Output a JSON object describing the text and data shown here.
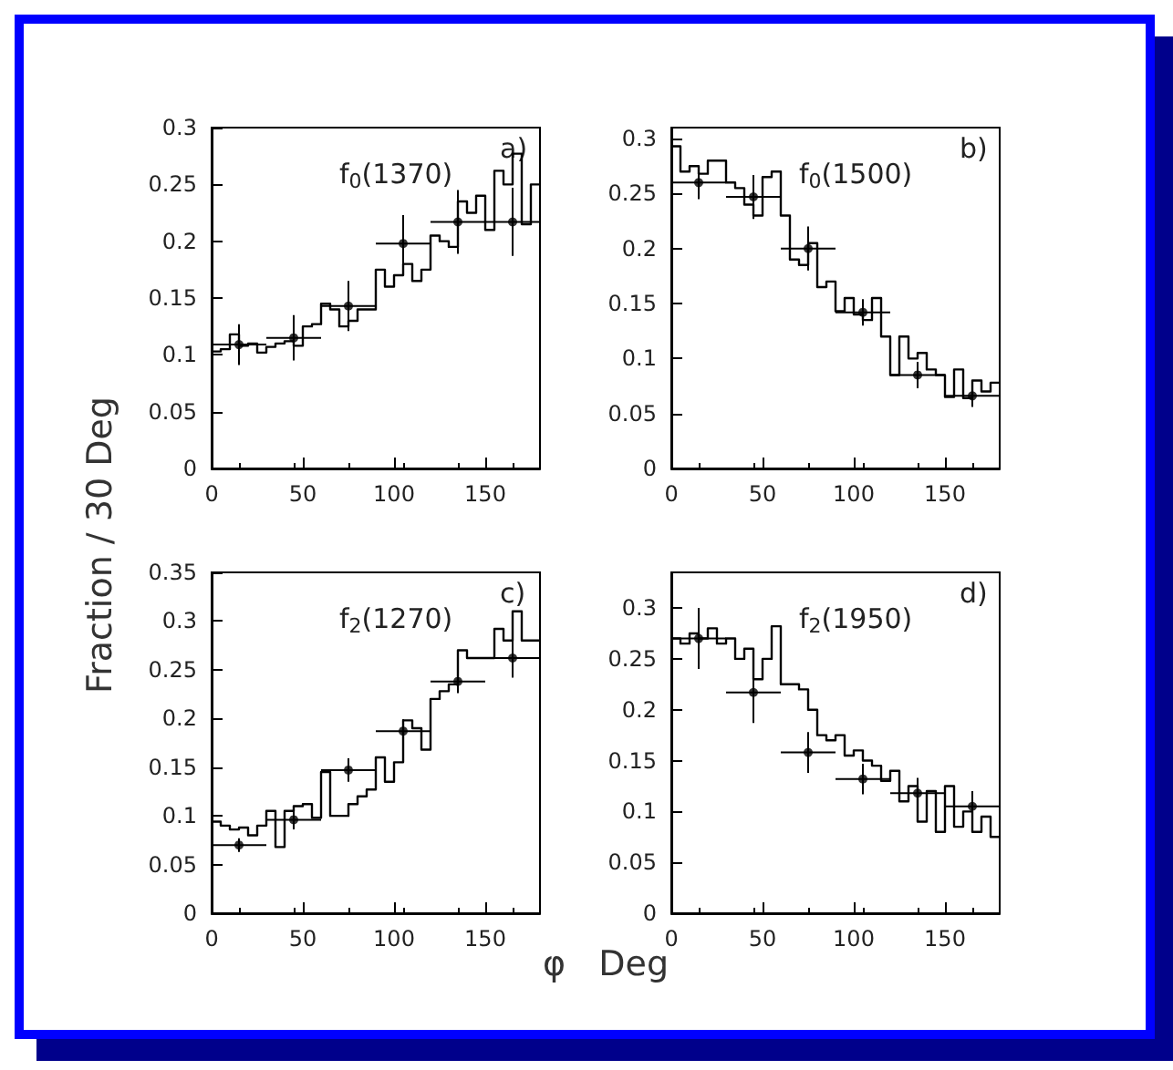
{
  "chart_data": [
    {
      "type": "histogram",
      "ylabel": "Fraction / 30 Deg",
      "annotations": [
        "f$_{0}$(1370)",
        "a)"
      ],
      "xlim": [
        0,
        180
      ],
      "xticks": [
        0,
        50,
        100,
        150
      ],
      "ylim": [
        0,
        0.3
      ],
      "yticks": [
        0,
        0.05,
        0.1,
        0.15,
        0.2,
        0.25,
        0.3
      ],
      "series": [
        {
          "type": "histogram",
          "color": "#000000",
          "bins": [
            0,
            5,
            10,
            15,
            20,
            25,
            30,
            35,
            40,
            45,
            50,
            55,
            60,
            65,
            70,
            75,
            80,
            85,
            90,
            95,
            100,
            105,
            110,
            115,
            120,
            125,
            130,
            135,
            140,
            145,
            150,
            155,
            160,
            165,
            170,
            175,
            180
          ],
          "values": [
            0.103,
            0.105,
            0.118,
            0.108,
            0.11,
            0.102,
            0.107,
            0.11,
            0.112,
            0.108,
            0.125,
            0.127,
            0.145,
            0.14,
            0.125,
            0.13,
            0.14,
            0.14,
            0.175,
            0.16,
            0.17,
            0.18,
            0.165,
            0.175,
            0.205,
            0.2,
            0.195,
            0.235,
            0.225,
            0.24,
            0.21,
            0.262,
            0.25,
            0.277,
            0.215,
            0.25
          ]
        },
        {
          "type": "scatter",
          "color": "#000000",
          "marker": "circle",
          "x": [
            15,
            45,
            75,
            105,
            135,
            165
          ],
          "values": [
            0.109,
            0.115,
            0.143,
            0.198,
            0.217,
            0.217
          ],
          "errors": [
            0.018,
            0.02,
            0.022,
            0.025,
            0.028,
            0.03
          ],
          "xerrors": [
            15,
            15,
            15,
            15,
            15,
            15
          ]
        }
      ]
    },
    {
      "type": "histogram",
      "annotations": [
        "f$_{0}$(1500)",
        "b)"
      ],
      "xlim": [
        0,
        180
      ],
      "xticks": [
        0,
        50,
        100,
        150
      ],
      "ylim": [
        0,
        0.31
      ],
      "yticks": [
        0,
        0.05,
        0.1,
        0.15,
        0.2,
        0.25,
        0.3
      ],
      "series": [
        {
          "type": "histogram",
          "color": "#000000",
          "bins": [
            0,
            5,
            10,
            15,
            20,
            25,
            30,
            35,
            40,
            45,
            50,
            55,
            60,
            65,
            70,
            75,
            80,
            85,
            90,
            95,
            100,
            105,
            110,
            115,
            120,
            125,
            130,
            135,
            140,
            145,
            150,
            155,
            160,
            165,
            170,
            175,
            180
          ],
          "values": [
            0.293,
            0.27,
            0.275,
            0.268,
            0.28,
            0.28,
            0.26,
            0.255,
            0.24,
            0.23,
            0.265,
            0.27,
            0.23,
            0.19,
            0.185,
            0.205,
            0.165,
            0.17,
            0.143,
            0.155,
            0.14,
            0.135,
            0.155,
            0.12,
            0.085,
            0.12,
            0.1,
            0.105,
            0.09,
            0.085,
            0.065,
            0.09,
            0.064,
            0.08,
            0.07,
            0.078
          ]
        },
        {
          "type": "scatter",
          "color": "#000000",
          "marker": "circle",
          "x": [
            15,
            45,
            75,
            105,
            135,
            165
          ],
          "values": [
            0.26,
            0.247,
            0.2,
            0.142,
            0.085,
            0.066
          ],
          "errors": [
            0.015,
            0.02,
            0.02,
            0.012,
            0.012,
            0.01
          ],
          "xerrors": [
            15,
            15,
            15,
            15,
            15,
            15
          ]
        }
      ]
    },
    {
      "type": "histogram",
      "xlabel": "φ   Deg",
      "annotations": [
        "f$_{2}$(1270)",
        "c)"
      ],
      "xlim": [
        0,
        180
      ],
      "xticks": [
        0,
        50,
        100,
        150
      ],
      "ylim": [
        0,
        0.35
      ],
      "yticks": [
        0,
        0.05,
        0.1,
        0.15,
        0.2,
        0.25,
        0.3,
        0.35
      ],
      "series": [
        {
          "type": "histogram",
          "color": "#000000",
          "bins": [
            0,
            5,
            10,
            15,
            20,
            25,
            30,
            35,
            40,
            45,
            50,
            55,
            60,
            65,
            70,
            75,
            80,
            85,
            90,
            95,
            100,
            105,
            110,
            115,
            120,
            125,
            130,
            135,
            140,
            145,
            150,
            155,
            160,
            165,
            170,
            175,
            180
          ],
          "values": [
            0.094,
            0.09,
            0.086,
            0.088,
            0.08,
            0.09,
            0.105,
            0.068,
            0.105,
            0.11,
            0.112,
            0.098,
            0.145,
            0.1,
            0.1,
            0.112,
            0.12,
            0.127,
            0.16,
            0.135,
            0.155,
            0.198,
            0.19,
            0.168,
            0.22,
            0.228,
            0.235,
            0.27,
            0.262,
            0.262,
            0.262,
            0.292,
            0.28,
            0.31,
            0.28,
            0.28
          ]
        },
        {
          "type": "scatter",
          "color": "#000000",
          "marker": "circle",
          "x": [
            15,
            45,
            75,
            105,
            135,
            165
          ],
          "values": [
            0.07,
            0.096,
            0.147,
            0.187,
            0.238,
            0.262
          ],
          "errors": [
            0.007,
            0.01,
            0.012,
            0.012,
            0.012,
            0.02
          ],
          "xerrors": [
            15,
            15,
            15,
            15,
            15,
            15
          ]
        }
      ]
    },
    {
      "type": "histogram",
      "annotations": [
        "f$_{2}$(1950)",
        "d)"
      ],
      "xlim": [
        0,
        180
      ],
      "xticks": [
        0,
        50,
        100,
        150
      ],
      "ylim": [
        0,
        0.335
      ],
      "yticks": [
        0,
        0.05,
        0.1,
        0.15,
        0.2,
        0.25,
        0.3
      ],
      "series": [
        {
          "type": "histogram",
          "color": "#000000",
          "bins": [
            0,
            5,
            10,
            15,
            20,
            25,
            30,
            35,
            40,
            45,
            50,
            55,
            60,
            65,
            70,
            75,
            80,
            85,
            90,
            95,
            100,
            105,
            110,
            115,
            120,
            125,
            130,
            135,
            140,
            145,
            150,
            155,
            160,
            165,
            170,
            175,
            180
          ],
          "values": [
            0.27,
            0.265,
            0.275,
            0.27,
            0.28,
            0.265,
            0.27,
            0.25,
            0.26,
            0.23,
            0.25,
            0.282,
            0.225,
            0.225,
            0.22,
            0.2,
            0.175,
            0.17,
            0.175,
            0.155,
            0.16,
            0.15,
            0.145,
            0.13,
            0.14,
            0.11,
            0.125,
            0.09,
            0.12,
            0.08,
            0.125,
            0.085,
            0.1,
            0.08,
            0.095,
            0.075
          ]
        },
        {
          "type": "scatter",
          "color": "#000000",
          "marker": "circle",
          "x": [
            15,
            45,
            75,
            105,
            135,
            165
          ],
          "values": [
            0.27,
            0.217,
            0.158,
            0.132,
            0.118,
            0.105
          ],
          "errors": [
            0.03,
            0.03,
            0.02,
            0.015,
            0.015,
            0.015
          ],
          "xerrors": [
            15,
            15,
            15,
            15,
            15,
            15
          ]
        }
      ]
    }
  ]
}
